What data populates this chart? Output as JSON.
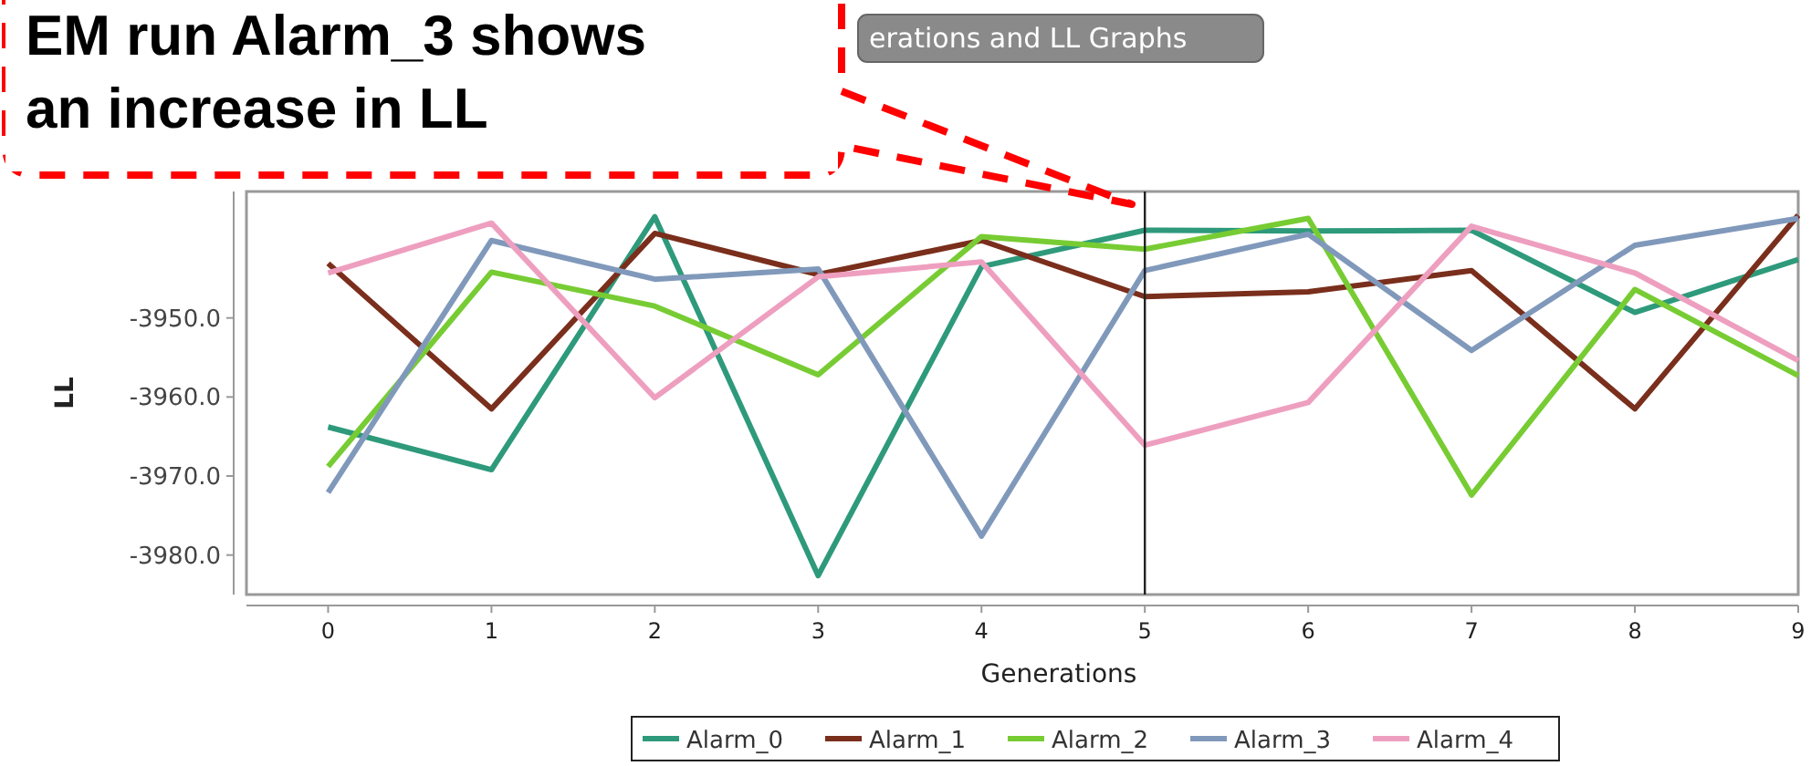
{
  "chart_data": {
    "type": "line",
    "xlabel": "Generations",
    "ylabel": "LL",
    "x": [
      0,
      1,
      2,
      3,
      4,
      5,
      6,
      7,
      8,
      9
    ],
    "xlim": [
      -0.5,
      9
    ],
    "xticks": [
      0,
      1,
      2,
      3,
      4,
      5,
      6,
      7,
      8,
      9
    ],
    "ylim": [
      -3985,
      -3934
    ],
    "yticks": [
      {
        "value": -3980,
        "label": "-3980.0"
      },
      {
        "value": -3970,
        "label": "-3970.0"
      },
      {
        "value": -3960,
        "label": "-3960.0"
      },
      {
        "value": -3950,
        "label": "-3950.0"
      }
    ],
    "series": [
      {
        "name": "Alarm_0",
        "color": "#2e9a7b",
        "values": [
          -3963.8,
          -3969.2,
          -3937.2,
          -3982.6,
          -3943.5,
          -3938.9,
          -3939.0,
          -3938.9,
          -3949.3,
          -3942.6
        ]
      },
      {
        "name": "Alarm_1",
        "color": "#7a2e1c",
        "values": [
          -3943.1,
          -3961.5,
          -3939.3,
          -3944.5,
          -3940.2,
          -3947.3,
          -3946.7,
          -3944.0,
          -3961.5,
          -3937.0
        ]
      },
      {
        "name": "Alarm_2",
        "color": "#77cc33",
        "values": [
          -3968.8,
          -3944.2,
          -3948.5,
          -3957.2,
          -3939.7,
          -3941.3,
          -3937.4,
          -3972.4,
          -3946.4,
          -3957.3
        ]
      },
      {
        "name": "Alarm_3",
        "color": "#8099bb",
        "values": [
          -3972.1,
          -3940.2,
          -3945.1,
          -3943.8,
          -3977.6,
          -3944.0,
          -3939.4,
          -3954.1,
          -3940.8,
          -3937.4
        ]
      },
      {
        "name": "Alarm_4",
        "color": "#ee9fbf",
        "values": [
          -3944.3,
          -3938.0,
          -3960.1,
          -3944.8,
          -3942.9,
          -3966.1,
          -3960.7,
          -3938.4,
          -3944.3,
          -3955.4
        ]
      }
    ],
    "ref_lines": [
      {
        "axis": "x",
        "value": 5,
        "color": "#222222"
      }
    ],
    "annotations": [
      "EM run Alarm_3 shows\nan increase in LL",
      "erations and LL Graphs"
    ],
    "legend": "bottom",
    "grid": false,
    "marker": "none",
    "line_style": "solid"
  }
}
